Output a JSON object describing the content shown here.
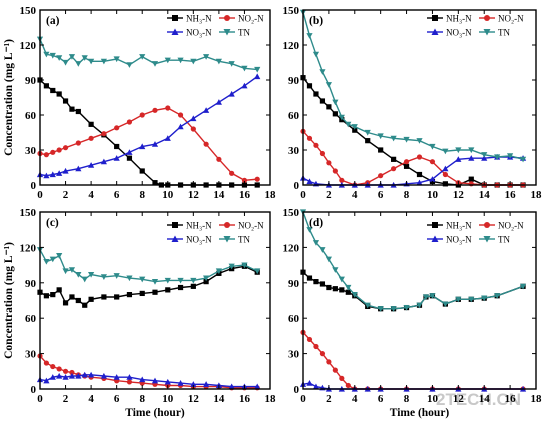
{
  "watermark": "2TECH.CN",
  "chart_data": [
    {
      "type": "line",
      "panel_label": "(a)",
      "ylabel": "Concentration (mg L⁻¹)",
      "xlabel": "",
      "xlim": [
        0,
        18
      ],
      "ylim": [
        0,
        150
      ],
      "xticks": [
        0,
        2,
        4,
        6,
        8,
        10,
        12,
        14,
        16,
        18
      ],
      "yticks": [
        0,
        30,
        60,
        90,
        120,
        150
      ],
      "series": [
        {
          "name": "NH₃-N",
          "color": "#000000",
          "marker": "square",
          "x": [
            0,
            0.5,
            1,
            1.5,
            2,
            2.5,
            3,
            4,
            5,
            6,
            7,
            8,
            9,
            9.5,
            10,
            11,
            12,
            13,
            14,
            15,
            16,
            17
          ],
          "y": [
            90,
            85,
            81,
            78,
            72,
            65,
            63,
            52,
            43,
            33,
            23,
            12,
            2,
            0,
            0,
            0,
            0,
            0,
            0,
            0,
            0,
            0
          ]
        },
        {
          "name": "NO₂-N",
          "color": "#d62728",
          "marker": "circle",
          "x": [
            0,
            0.5,
            1,
            1.5,
            2,
            3,
            4,
            5,
            6,
            7,
            8,
            9,
            10,
            11,
            12,
            13,
            14,
            15,
            16,
            17
          ],
          "y": [
            27,
            26,
            28,
            30,
            32,
            36,
            40,
            44,
            49,
            54,
            60,
            64,
            66,
            60,
            48,
            35,
            22,
            10,
            4,
            5
          ]
        },
        {
          "name": "NO₃-N",
          "color": "#1f1fcc",
          "marker": "triangle-up",
          "x": [
            0,
            0.5,
            1,
            1.5,
            2,
            3,
            4,
            5,
            6,
            7,
            8,
            9,
            10,
            11,
            12,
            13,
            14,
            15,
            16,
            17
          ],
          "y": [
            9,
            8,
            9,
            10,
            12,
            14,
            17,
            20,
            23,
            28,
            33,
            35,
            40,
            50,
            57,
            64,
            71,
            78,
            85,
            93
          ]
        },
        {
          "name": "TN",
          "color": "#2e8b8b",
          "marker": "triangle-down",
          "x": [
            0,
            0.5,
            1,
            1.5,
            2,
            2.5,
            3,
            3.5,
            4,
            5,
            6,
            7,
            8,
            9,
            10,
            11,
            12,
            13,
            14,
            15,
            16,
            17
          ],
          "y": [
            125,
            112,
            111,
            109,
            105,
            110,
            104,
            109,
            106,
            106,
            108,
            103,
            110,
            104,
            107,
            107,
            106,
            110,
            106,
            104,
            100,
            99
          ]
        }
      ]
    },
    {
      "type": "line",
      "panel_label": "(b)",
      "ylabel": "",
      "xlabel": "",
      "xlim": [
        0,
        18
      ],
      "ylim": [
        0,
        150
      ],
      "xticks": [
        0,
        2,
        4,
        6,
        8,
        10,
        12,
        14,
        16,
        18
      ],
      "yticks": [
        0,
        30,
        60,
        90,
        120,
        150
      ],
      "series": [
        {
          "name": "NH₃-N",
          "color": "#000000",
          "marker": "square",
          "x": [
            0,
            0.5,
            1,
            1.5,
            2,
            2.5,
            3,
            4,
            5,
            6,
            7,
            8,
            9,
            10,
            11,
            12,
            13,
            14,
            15,
            16,
            17
          ],
          "y": [
            92,
            85,
            78,
            72,
            67,
            61,
            56,
            47,
            38,
            30,
            22,
            16,
            9,
            3,
            1,
            0,
            5,
            0,
            0,
            0,
            0
          ]
        },
        {
          "name": "NO₂-N",
          "color": "#d62728",
          "marker": "circle",
          "x": [
            0,
            0.5,
            1,
            1.5,
            2,
            2.5,
            3,
            4,
            5,
            6,
            7,
            8,
            9,
            10,
            11,
            12,
            13,
            14,
            15,
            16,
            17
          ],
          "y": [
            46,
            40,
            34,
            27,
            19,
            12,
            4,
            0,
            2,
            8,
            14,
            20,
            24,
            20,
            9,
            2,
            1,
            0,
            0,
            0,
            0
          ]
        },
        {
          "name": "NO₃-N",
          "color": "#1f1fcc",
          "marker": "triangle-up",
          "x": [
            0,
            0.5,
            1,
            2,
            3,
            4,
            5,
            6,
            7,
            8,
            9,
            10,
            11,
            12,
            13,
            14,
            15,
            16,
            17
          ],
          "y": [
            6,
            3,
            1,
            0,
            0,
            0,
            0,
            0,
            0,
            1,
            2,
            5,
            14,
            22,
            23,
            23,
            24,
            24,
            23
          ]
        },
        {
          "name": "TN",
          "color": "#2e8b8b",
          "marker": "triangle-down",
          "x": [
            0,
            0.5,
            1,
            1.5,
            2,
            2.5,
            3,
            3.5,
            4,
            5,
            6,
            7,
            8,
            9,
            10,
            11,
            12,
            13,
            14,
            15,
            16,
            17
          ],
          "y": [
            148,
            128,
            112,
            97,
            86,
            71,
            58,
            52,
            50,
            45,
            42,
            40,
            39,
            38,
            33,
            29,
            30,
            30,
            26,
            24,
            25,
            22
          ]
        }
      ]
    },
    {
      "type": "line",
      "panel_label": "(c)",
      "ylabel": "Concentration (mg L⁻¹)",
      "xlabel": "Time (hour)",
      "xlim": [
        0,
        18
      ],
      "ylim": [
        0,
        150
      ],
      "xticks": [
        0,
        2,
        4,
        6,
        8,
        10,
        12,
        14,
        16,
        18
      ],
      "yticks": [
        0,
        30,
        60,
        90,
        120,
        150
      ],
      "series": [
        {
          "name": "NH₃-N",
          "color": "#000000",
          "marker": "square",
          "x": [
            0,
            0.5,
            1,
            1.5,
            2,
            2.5,
            3,
            3.5,
            4,
            5,
            6,
            7,
            8,
            9,
            10,
            11,
            12,
            13,
            14,
            15,
            16,
            17
          ],
          "y": [
            82,
            79,
            80,
            84,
            73,
            78,
            75,
            71,
            76,
            78,
            78,
            80,
            81,
            82,
            84,
            86,
            87,
            91,
            98,
            102,
            104,
            99
          ]
        },
        {
          "name": "NO₂-N",
          "color": "#d62728",
          "marker": "circle",
          "x": [
            0,
            0.5,
            1,
            1.5,
            2,
            2.5,
            3,
            3.5,
            4,
            5,
            6,
            7,
            8,
            9,
            10,
            11,
            12,
            13,
            14,
            15,
            16,
            17
          ],
          "y": [
            28,
            22,
            19,
            17,
            15,
            14,
            12,
            11,
            10,
            9,
            7,
            6,
            5,
            4,
            3,
            3,
            2,
            2,
            2,
            1,
            1,
            1
          ]
        },
        {
          "name": "NO₃-N",
          "color": "#1f1fcc",
          "marker": "triangle-up",
          "x": [
            0,
            0.5,
            1,
            1.5,
            2,
            2.5,
            3,
            3.5,
            4,
            5,
            6,
            7,
            8,
            9,
            10,
            11,
            12,
            13,
            14,
            15,
            16,
            17
          ],
          "y": [
            8,
            7,
            10,
            11,
            10,
            11,
            11,
            12,
            12,
            11,
            10,
            10,
            8,
            7,
            6,
            5,
            4,
            4,
            3,
            2,
            2,
            2
          ]
        },
        {
          "name": "TN",
          "color": "#2e8b8b",
          "marker": "triangle-down",
          "x": [
            0,
            0.5,
            1,
            1.5,
            2,
            2.5,
            3,
            3.5,
            4,
            5,
            6,
            7,
            8,
            9,
            10,
            11,
            12,
            13,
            14,
            15,
            16,
            17
          ],
          "y": [
            118,
            108,
            110,
            113,
            100,
            101,
            97,
            93,
            97,
            95,
            96,
            94,
            93,
            91,
            92,
            92,
            92,
            94,
            100,
            104,
            105,
            100
          ]
        }
      ]
    },
    {
      "type": "line",
      "panel_label": "(d)",
      "ylabel": "",
      "xlabel": "Time (hour)",
      "xlim": [
        0,
        18
      ],
      "ylim": [
        0,
        150
      ],
      "xticks": [
        0,
        2,
        4,
        6,
        8,
        10,
        12,
        14,
        16,
        18
      ],
      "yticks": [
        0,
        30,
        60,
        90,
        120,
        150
      ],
      "series": [
        {
          "name": "NH₃-N",
          "color": "#000000",
          "marker": "square",
          "x": [
            0,
            0.5,
            1,
            1.5,
            2,
            2.5,
            3,
            3.5,
            4,
            5,
            6,
            7,
            8,
            9,
            9.5,
            10,
            11,
            12,
            13,
            14,
            15,
            17
          ],
          "y": [
            99,
            94,
            91,
            89,
            86,
            85,
            84,
            82,
            79,
            70,
            68,
            68,
            69,
            71,
            78,
            79,
            72,
            76,
            76,
            77,
            79,
            87
          ]
        },
        {
          "name": "NO₂-N",
          "color": "#d62728",
          "marker": "circle",
          "x": [
            0,
            0.5,
            1,
            1.5,
            2,
            2.5,
            3,
            3.5,
            4,
            5,
            6,
            8,
            10,
            12,
            14,
            17
          ],
          "y": [
            48,
            42,
            36,
            30,
            23,
            16,
            9,
            3,
            0,
            0,
            0,
            0,
            0,
            0,
            0,
            0
          ]
        },
        {
          "name": "NO₃-N",
          "color": "#1f1fcc",
          "marker": "triangle-up",
          "x": [
            0,
            0.5,
            1,
            1.5,
            2,
            3,
            4,
            5,
            6,
            8,
            10,
            12,
            14,
            17
          ],
          "y": [
            4,
            5,
            2,
            1,
            0,
            0,
            0,
            0,
            0,
            0,
            0,
            0,
            0,
            0
          ]
        },
        {
          "name": "TN",
          "color": "#2e8b8b",
          "marker": "triangle-down",
          "x": [
            0,
            0.5,
            1,
            1.5,
            2,
            2.5,
            3,
            3.5,
            4,
            5,
            6,
            7,
            8,
            9,
            9.5,
            10,
            11,
            12,
            13,
            14,
            15,
            17
          ],
          "y": [
            150,
            135,
            124,
            118,
            110,
            101,
            93,
            86,
            80,
            71,
            68,
            68,
            69,
            71,
            78,
            79,
            72,
            76,
            76,
            77,
            79,
            87
          ]
        }
      ]
    }
  ]
}
